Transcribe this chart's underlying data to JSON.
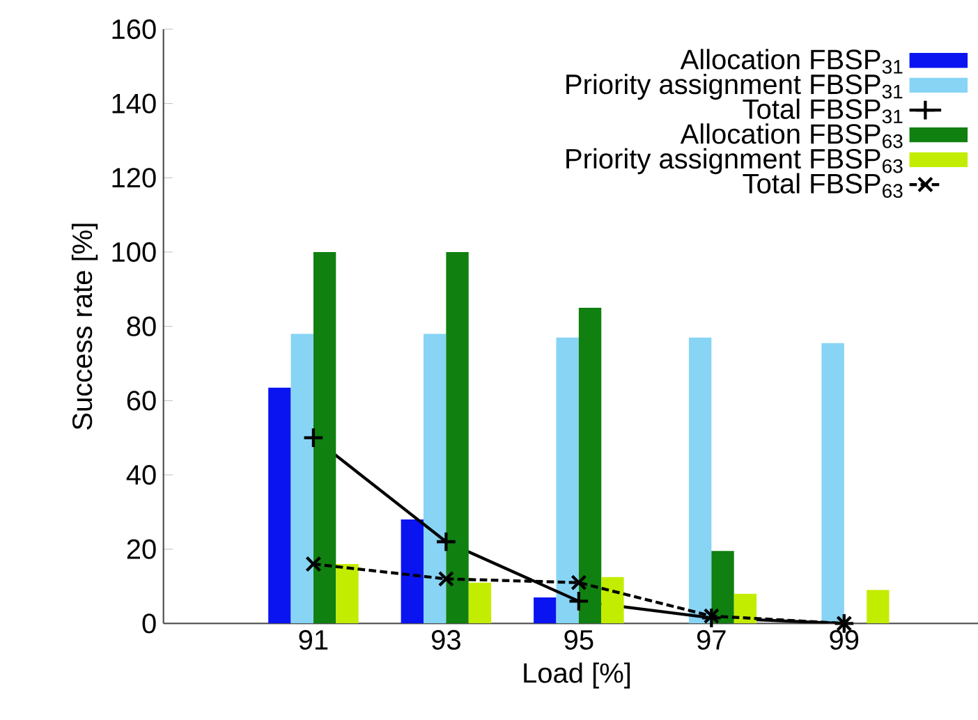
{
  "chart_data": {
    "type": "bar",
    "xlabel": "Load [%]",
    "ylabel": "Success rate [%]",
    "categories": [
      "91",
      "93",
      "95",
      "97",
      "99"
    ],
    "ylim": [
      0,
      160
    ],
    "yticks": [
      0,
      20,
      40,
      60,
      80,
      100,
      120,
      140,
      160
    ],
    "legend": "top right",
    "grid": false,
    "series": [
      {
        "name": "Allocation FBSP$_{31}$",
        "color": "#0a14f0",
        "values": [
          63.5,
          28,
          7,
          0,
          0
        ]
      },
      {
        "name": "Priority assignment FBSP$_{31}$",
        "color": "#87d4f5",
        "values": [
          78,
          78,
          77,
          77,
          75.5
        ]
      },
      {
        "name": "Total FBSP$_{31}$",
        "type": "line",
        "color": "#000000",
        "marker": "plus",
        "line_style": "solid",
        "values": [
          50,
          22,
          6,
          1.5,
          0
        ]
      },
      {
        "name": "Allocation FBSP$_{63}$",
        "color": "#108010",
        "values": [
          100,
          100,
          85,
          19.5,
          0
        ]
      },
      {
        "name": "Priority assignment FBSP$_{63}$",
        "color": "#c3ed00",
        "values": [
          16,
          11,
          12.5,
          8,
          9
        ]
      },
      {
        "name": "Total FBSP$_{63}$",
        "type": "line",
        "color": "#000000",
        "marker": "cross",
        "line_style": "dashed",
        "values": [
          16,
          12,
          11,
          2,
          0
        ]
      }
    ]
  }
}
